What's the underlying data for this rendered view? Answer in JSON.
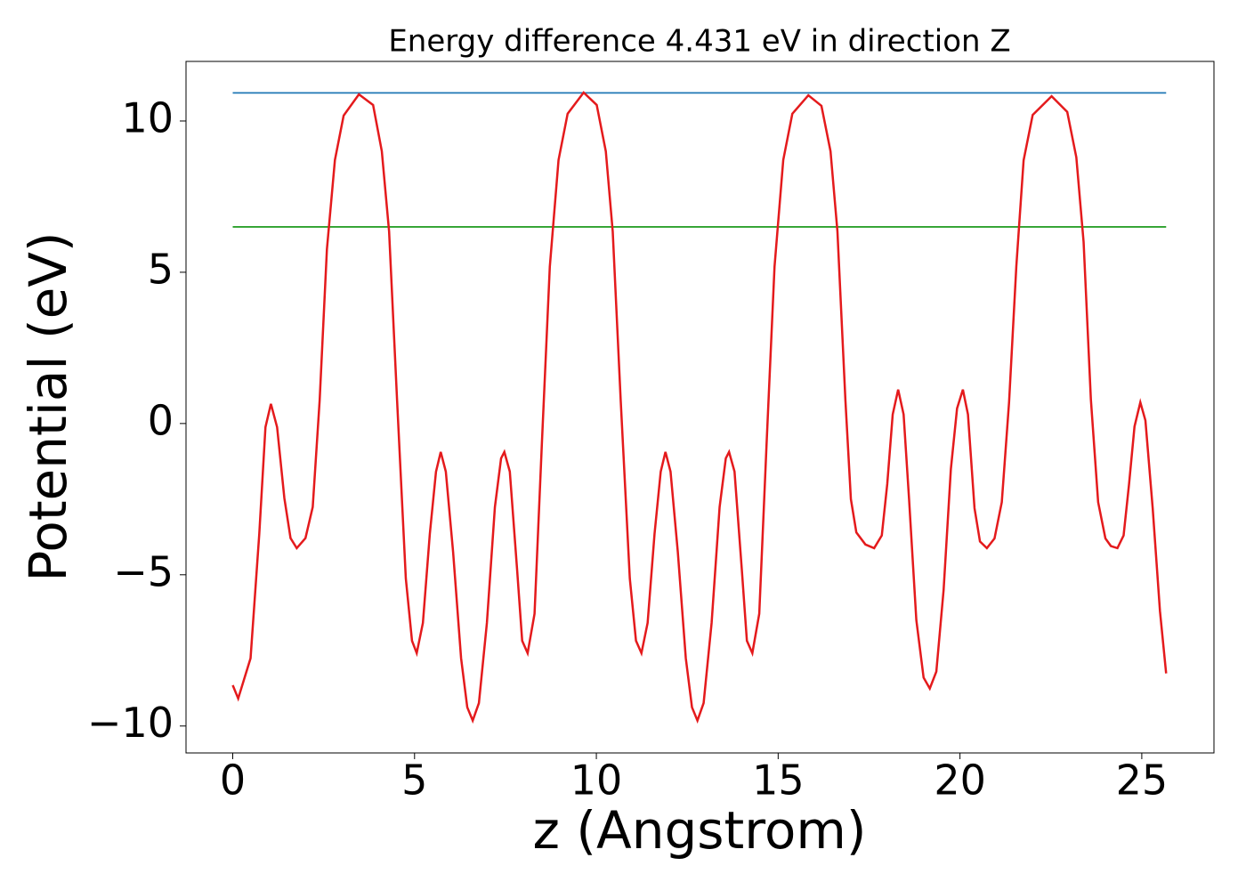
{
  "chart_data": {
    "type": "line",
    "title": "Energy difference 4.431 eV in direction Z",
    "x_label": "z (Angstrom)",
    "y_label": "Potential (eV)",
    "xlim": [
      -1.285,
      26.985
    ],
    "ylim": [
      -10.89,
      11.97
    ],
    "xticks": [
      0,
      5,
      10,
      15,
      20,
      25
    ],
    "yticks": [
      {
        "value": -10,
        "label": "−10"
      },
      {
        "value": -5,
        "label": "−5"
      },
      0,
      5,
      10
    ],
    "series": [
      {
        "color": "#1f77b4",
        "x": [
          0,
          25.67
        ],
        "values": [
          10.93,
          10.93
        ]
      },
      {
        "color": "#2ca02c",
        "x": [
          0,
          25.67
        ],
        "values": [
          6.5,
          6.5
        ]
      },
      {
        "color": "#e41a1c",
        "x": [
          0,
          0.15,
          0.49,
          0.73,
          0.9,
          1.05,
          1.22,
          1.42,
          1.59,
          1.76,
          2.0,
          2.2,
          2.39,
          2.59,
          2.81,
          3.05,
          3.47,
          3.86,
          4.1,
          4.3,
          4.52,
          4.76,
          4.93,
          5.06,
          5.23,
          5.42,
          5.59,
          5.72,
          5.86,
          6.06,
          6.28,
          6.45,
          6.6,
          6.77,
          6.99,
          7.21,
          7.38,
          7.47,
          7.62,
          7.82,
          7.96,
          8.11,
          8.3,
          8.5,
          8.72,
          8.96,
          9.21,
          9.65,
          10.01,
          10.26,
          10.45,
          10.67,
          10.92,
          11.09,
          11.24,
          11.41,
          11.6,
          11.77,
          11.9,
          12.04,
          12.24,
          12.46,
          12.63,
          12.78,
          12.95,
          13.17,
          13.39,
          13.56,
          13.65,
          13.8,
          14.0,
          14.14,
          14.29,
          14.48,
          14.68,
          14.9,
          15.14,
          15.39,
          15.83,
          16.19,
          16.44,
          16.63,
          16.85,
          17.0,
          17.15,
          17.4,
          17.64,
          17.85,
          18.0,
          18.15,
          18.3,
          18.45,
          18.6,
          18.8,
          19.0,
          19.17,
          19.35,
          19.55,
          19.75,
          19.92,
          20.08,
          20.22,
          20.4,
          20.55,
          20.74,
          20.95,
          21.15,
          21.35,
          21.55,
          21.75,
          22.0,
          22.52,
          22.95,
          23.2,
          23.4,
          23.6,
          23.8,
          24.0,
          24.15,
          24.33,
          24.5,
          24.65,
          24.8,
          24.96,
          25.1,
          25.3,
          25.5,
          25.67
        ],
        "values": [
          -8.65,
          -9.09,
          -7.76,
          -3.65,
          -0.12,
          0.65,
          -0.12,
          -2.47,
          -3.79,
          -4.12,
          -3.79,
          -2.76,
          0.76,
          5.76,
          8.71,
          10.18,
          10.88,
          10.53,
          9.0,
          6.35,
          0.76,
          -5.12,
          -7.18,
          -7.59,
          -6.59,
          -3.65,
          -1.59,
          -0.94,
          -1.59,
          -4.24,
          -7.76,
          -9.38,
          -9.82,
          -9.24,
          -6.59,
          -2.76,
          -1.15,
          -0.94,
          -1.59,
          -4.82,
          -7.18,
          -7.59,
          -6.29,
          -0.71,
          5.18,
          8.71,
          10.24,
          10.94,
          10.53,
          9.0,
          6.35,
          0.76,
          -5.12,
          -7.18,
          -7.59,
          -6.59,
          -3.65,
          -1.59,
          -0.94,
          -1.59,
          -4.24,
          -7.76,
          -9.38,
          -9.82,
          -9.24,
          -6.59,
          -2.76,
          -1.15,
          -0.94,
          -1.59,
          -4.82,
          -7.18,
          -7.59,
          -6.29,
          -0.71,
          5.18,
          8.71,
          10.24,
          10.85,
          10.5,
          9.0,
          6.35,
          0.76,
          -2.5,
          -3.6,
          -4.0,
          -4.12,
          -3.7,
          -2.0,
          0.3,
          1.12,
          0.3,
          -2.5,
          -6.5,
          -8.4,
          -8.76,
          -8.2,
          -5.5,
          -1.5,
          0.5,
          1.12,
          0.3,
          -2.8,
          -3.9,
          -4.12,
          -3.8,
          -2.6,
          0.7,
          5.2,
          8.7,
          10.2,
          10.82,
          10.3,
          8.8,
          6.0,
          0.8,
          -2.6,
          -3.8,
          -4.05,
          -4.12,
          -3.7,
          -2.0,
          -0.1,
          0.7,
          0.1,
          -2.8,
          -6.2,
          -8.26
        ]
      }
    ]
  }
}
